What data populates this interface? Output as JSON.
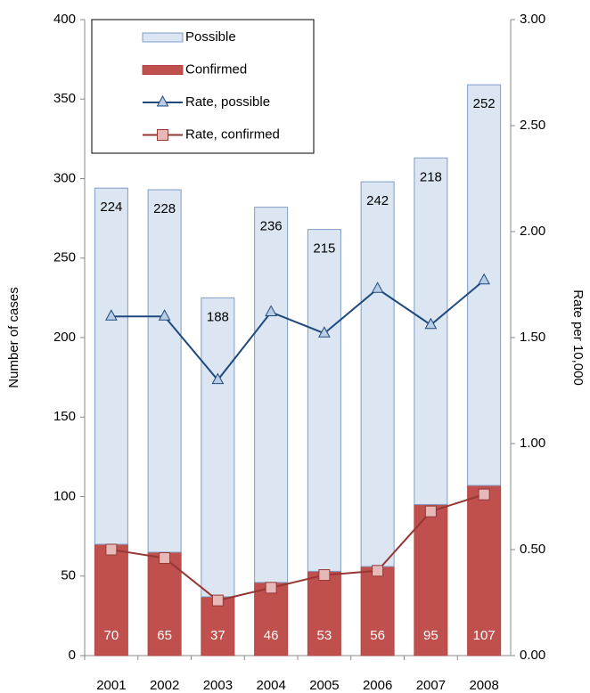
{
  "chart_data": {
    "type": "bar-line",
    "categories": [
      "2001",
      "2002",
      "2003",
      "2004",
      "2005",
      "2006",
      "2007",
      "2008"
    ],
    "y_label": "Number of cases",
    "y2_label": "Rate per 10,000",
    "ylim": [
      0,
      400
    ],
    "yticks": [
      0,
      50,
      100,
      150,
      200,
      250,
      300,
      350,
      400
    ],
    "y2lim": [
      0,
      3
    ],
    "y2ticks": [
      {
        "value": 0,
        "label": "0.00"
      },
      {
        "value": 0.5,
        "label": "0.50"
      },
      {
        "value": 1,
        "label": "1.00"
      },
      {
        "value": 1.5,
        "label": "1.50"
      },
      {
        "value": 2,
        "label": "2.00"
      },
      {
        "value": 2.5,
        "label": "2.50"
      },
      {
        "value": 3,
        "label": "3.00"
      }
    ],
    "legend": "top-left",
    "series": [
      {
        "name": "Possible",
        "kind": "bar",
        "stack": 1,
        "color": "#dce6f2",
        "values": [
          224,
          228,
          188,
          236,
          215,
          242,
          218,
          252
        ]
      },
      {
        "name": "Confirmed",
        "kind": "bar",
        "stack": 0,
        "color": "#c0504d",
        "values": [
          70,
          65,
          37,
          46,
          53,
          56,
          95,
          107
        ]
      },
      {
        "name": "Rate, possible",
        "kind": "line",
        "marker": "triangle",
        "axis": "y2",
        "color": "#1f497d",
        "values": [
          1.6,
          1.6,
          1.3,
          1.62,
          1.52,
          1.73,
          1.56,
          1.77
        ]
      },
      {
        "name": "Rate, confirmed",
        "kind": "line",
        "marker": "square",
        "axis": "y2",
        "color": "#953735",
        "values": [
          0.5,
          0.46,
          0.26,
          0.32,
          0.38,
          0.4,
          0.68,
          0.76
        ]
      }
    ]
  }
}
